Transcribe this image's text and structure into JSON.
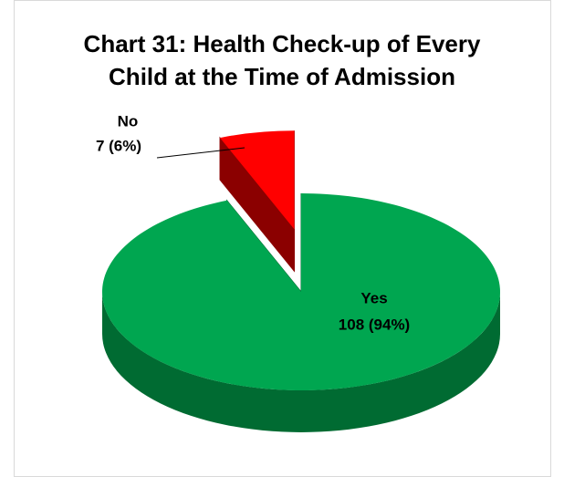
{
  "chart_data": {
    "type": "pie",
    "title": "Chart 31: Health Check-up of Every Child at the Time of Admission",
    "categories": [
      "Yes",
      "No"
    ],
    "values": [
      108,
      7
    ],
    "value_labels": [
      "108 (94%)",
      "7 (6%)"
    ],
    "colors": [
      "#00a650",
      "#ff0000"
    ],
    "side_colors": [
      "#006b32",
      "#8b0000"
    ],
    "exploded": [
      false,
      true
    ]
  }
}
